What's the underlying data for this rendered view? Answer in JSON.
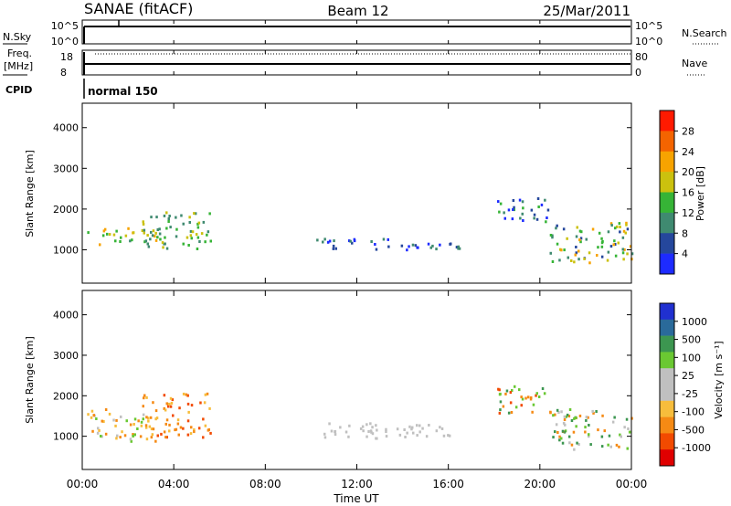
{
  "header": {
    "station": "SANAE (fitACF)",
    "beam": "Beam 12",
    "date": "25/Mar/2011"
  },
  "nsky_panel": {
    "label": "N.Sky",
    "left_ticks": [
      "10^5",
      "10^0"
    ],
    "right_label": "N.Search",
    "right_ticks": [
      "10^5",
      "10^0"
    ]
  },
  "freq_panel": {
    "label_line1": "Freq.",
    "label_line2": "[MHz]",
    "left_ticks": [
      "18",
      "8"
    ],
    "right_label": "Nave",
    "right_ticks": [
      "80",
      "0"
    ]
  },
  "cpid": {
    "label": "CPID",
    "value": "normal 150"
  },
  "time_axis": {
    "label": "Time UT",
    "ticks": [
      "00:00",
      "04:00",
      "08:00",
      "12:00",
      "16:00",
      "20:00",
      "00:00"
    ]
  },
  "colors": {
    "power": [
      "#1d2bff",
      "#25479c",
      "#3f8a70",
      "#36b436",
      "#cbc10e",
      "#f7a300",
      "#f46400",
      "#ff1a00"
    ],
    "velocity": [
      "#e00000",
      "#f24a00",
      "#f58a14",
      "#f7bd3c",
      "#c0c0c0",
      "#c0c0c0",
      "#6ac832",
      "#3c9650",
      "#2a6a9a",
      "#2030d0"
    ]
  },
  "chart_data": [
    {
      "type": "heatmap",
      "ylabel": "Slant Range [km]",
      "yticks": [
        1000,
        2000,
        3000,
        4000
      ],
      "ylim": [
        180,
        4600
      ],
      "xlim": [
        0,
        24
      ],
      "colorbar_label": "Power [dB]",
      "colorbar_ticks": [
        "4",
        "8",
        "12",
        "16",
        "20",
        "24",
        "28"
      ],
      "regions": [
        {
          "t": [
            0.2,
            3.2
          ],
          "r": [
            1100,
            1600
          ],
          "levels": [
            2,
            3,
            4,
            5,
            3
          ]
        },
        {
          "t": [
            2.6,
            5.6
          ],
          "r": [
            1050,
            1950
          ],
          "levels": [
            2,
            3,
            4,
            2
          ]
        },
        {
          "t": [
            10.2,
            16.5
          ],
          "r": [
            1000,
            1300
          ],
          "levels": [
            0,
            1,
            2
          ]
        },
        {
          "t": [
            18.1,
            20.4
          ],
          "r": [
            1700,
            2300
          ],
          "levels": [
            0,
            1,
            2,
            3
          ]
        },
        {
          "t": [
            20.4,
            24.0
          ],
          "r": [
            700,
            1700
          ],
          "levels": [
            1,
            2,
            3,
            4,
            5
          ]
        }
      ]
    },
    {
      "type": "heatmap",
      "ylabel": "Slant Range [km]",
      "yticks": [
        1000,
        2000,
        3000,
        4000
      ],
      "ylim": [
        180,
        4600
      ],
      "xlim": [
        0,
        24
      ],
      "colorbar_label": "Velocity [m s⁻¹]",
      "colorbar_ticks": [
        "1000",
        "500",
        "100",
        "25",
        "-25",
        "-100",
        "-500",
        "-1000"
      ],
      "regions": [
        {
          "t": [
            0.2,
            3.2
          ],
          "r": [
            900,
            1700
          ],
          "levels": [
            2,
            3,
            4,
            6
          ]
        },
        {
          "t": [
            2.6,
            5.6
          ],
          "r": [
            1000,
            2100
          ],
          "levels": [
            1,
            2,
            3
          ]
        },
        {
          "t": [
            10.2,
            16.5
          ],
          "r": [
            950,
            1350
          ],
          "levels": [
            4
          ]
        },
        {
          "t": [
            18.1,
            20.5
          ],
          "r": [
            1600,
            2300
          ],
          "levels": [
            1,
            2,
            6,
            7
          ]
        },
        {
          "t": [
            20.5,
            24.0
          ],
          "r": [
            700,
            1700
          ],
          "levels": [
            2,
            4,
            6,
            7
          ]
        }
      ]
    }
  ]
}
